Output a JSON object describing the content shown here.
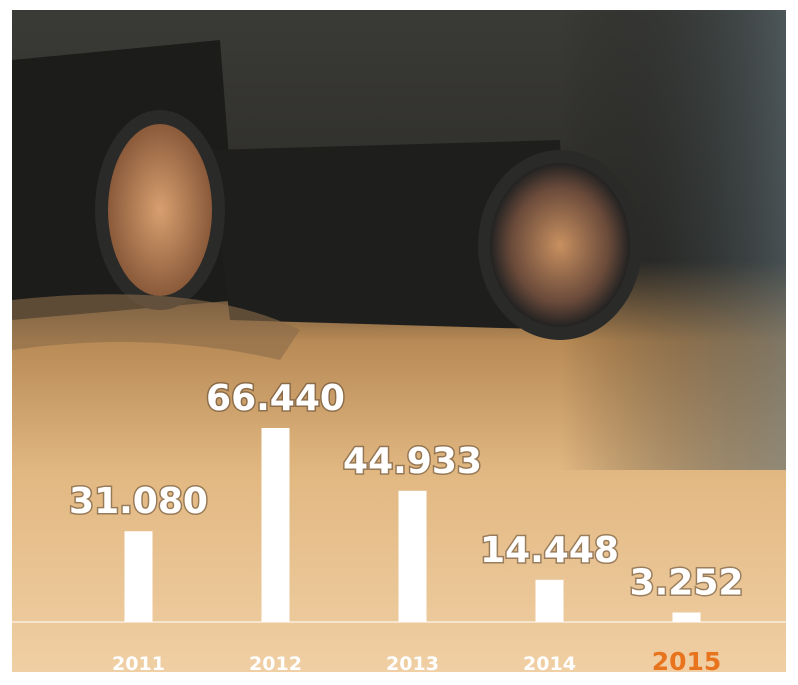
{
  "chart_data": {
    "type": "bar",
    "categories": [
      "2011",
      "2012",
      "2013",
      "2014",
      "2015"
    ],
    "values": [
      31080,
      66440,
      44933,
      14448,
      3252
    ],
    "value_labels": [
      "31.080",
      "66.440",
      "44.933",
      "14.448",
      "3.252"
    ],
    "color": "#ffffff",
    "label_colors": [
      "#ffffff",
      "#ffffff",
      "#ffffff",
      "#ffffff",
      "#e8741e"
    ]
  }
}
